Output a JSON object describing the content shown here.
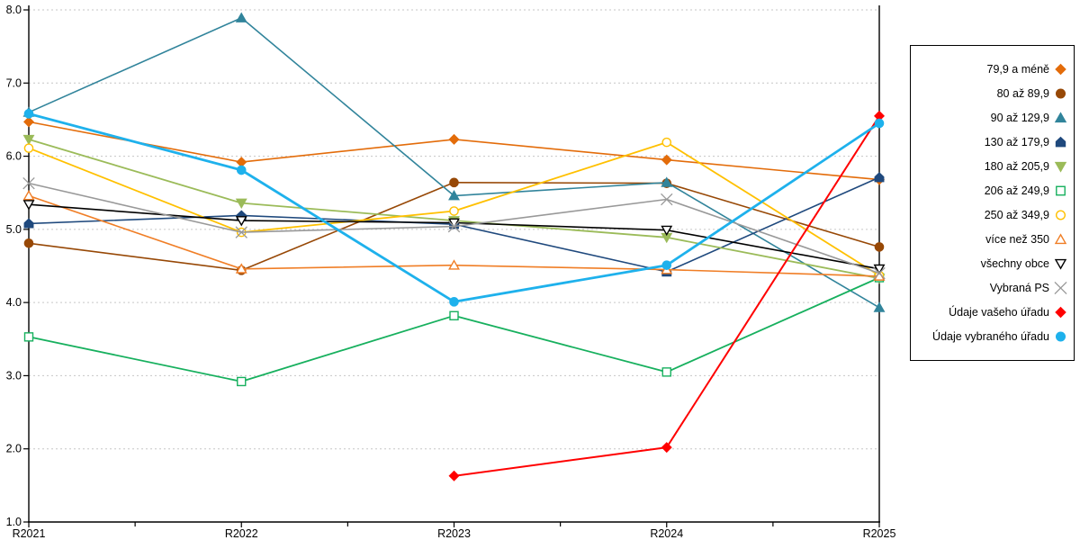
{
  "chart_data": {
    "type": "line",
    "categories": [
      "R2021",
      "R2022",
      "R2023",
      "R2024",
      "R2025"
    ],
    "ylim": [
      1.0,
      8.0
    ],
    "ytick_step": 1.0,
    "ytick_labels": [
      "8.0",
      "7.0",
      "6.0",
      "5.0",
      "4.0",
      "3.0",
      "2.0",
      "1.0"
    ],
    "grid": "horizontal-dashed",
    "legend_position": "right-outside",
    "axis_color": "#000000",
    "gridline_color": "#c6c6c6",
    "series": [
      {
        "name": "79,9 a méně",
        "marker": "diamond",
        "filled": true,
        "color": "#e36c0a",
        "line_width": 1.6,
        "values": [
          6.47,
          5.92,
          6.23,
          5.95,
          5.68
        ]
      },
      {
        "name": "80 až 89,9",
        "marker": "circle",
        "filled": true,
        "color": "#974806",
        "line_width": 1.6,
        "values": [
          4.81,
          4.44,
          5.64,
          5.63,
          4.76
        ]
      },
      {
        "name": "90 až 129,9",
        "marker": "triangle-up",
        "filled": true,
        "color": "#31849b",
        "line_width": 1.6,
        "values": [
          6.6,
          7.89,
          5.46,
          5.64,
          3.93
        ]
      },
      {
        "name": "130 až 179,9",
        "marker": "pentagon",
        "filled": true,
        "color": "#1f497d",
        "line_width": 1.6,
        "values": [
          5.08,
          5.19,
          5.07,
          4.42,
          5.71
        ]
      },
      {
        "name": "180 až 205,9",
        "marker": "triangle-down",
        "filled": true,
        "color": "#9bbb59",
        "line_width": 1.8,
        "values": [
          6.23,
          5.36,
          5.12,
          4.89,
          4.33
        ]
      },
      {
        "name": "206 až 249,9",
        "marker": "square",
        "filled": false,
        "color": "#17b05e",
        "line_width": 1.8,
        "values": [
          3.53,
          2.92,
          3.82,
          3.05,
          4.34
        ]
      },
      {
        "name": "250 až 349,9",
        "marker": "circle",
        "filled": false,
        "color": "#ffc000",
        "line_width": 1.8,
        "values": [
          6.11,
          4.96,
          5.25,
          6.19,
          4.37
        ]
      },
      {
        "name": "více než 350",
        "marker": "triangle-up",
        "filled": false,
        "color": "#f07e26",
        "line_width": 1.6,
        "values": [
          5.46,
          4.46,
          4.51,
          4.45,
          4.36
        ]
      },
      {
        "name": "všechny obce",
        "marker": "triangle-down",
        "filled": false,
        "color": "#000000",
        "line_width": 1.6,
        "values": [
          5.34,
          5.12,
          5.09,
          4.99,
          4.46
        ]
      },
      {
        "name": "Vybraná PS",
        "marker": "x",
        "filled": false,
        "color": "#999999",
        "line_width": 1.6,
        "values": [
          5.63,
          4.96,
          5.04,
          5.41,
          4.4
        ]
      },
      {
        "name": "Údaje vašeho úřadu",
        "marker": "diamond",
        "filled": true,
        "color": "#ff0000",
        "line_width": 2.0,
        "values": [
          null,
          null,
          1.63,
          2.02,
          6.55
        ]
      },
      {
        "name": "Údaje vybraného úřadu",
        "marker": "circle",
        "filled": true,
        "color": "#1eb1ec",
        "line_width": 2.8,
        "values": [
          6.58,
          5.81,
          4.01,
          4.51,
          6.45
        ]
      }
    ]
  }
}
